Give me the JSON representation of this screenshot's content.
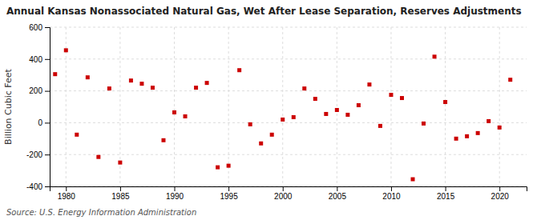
{
  "chart_data": {
    "type": "scatter",
    "title": "Annual Kansas Nonassociated Natural Gas, Wet After Lease Separation, Reserves Adjustments",
    "ylabel": "Billion Cubic Feet",
    "source": "Source: U.S. Energy Information Administration",
    "color": "#cc0000",
    "marker": "square",
    "grid": true,
    "x": [
      1979,
      1980,
      1981,
      1982,
      1983,
      1984,
      1985,
      1986,
      1987,
      1988,
      1989,
      1990,
      1991,
      1992,
      1993,
      1994,
      1995,
      1996,
      1997,
      1998,
      1999,
      2000,
      2001,
      2002,
      2003,
      2004,
      2005,
      2006,
      2007,
      2008,
      2009,
      2010,
      2011,
      2012,
      2013,
      2014,
      2015,
      2016,
      2017,
      2018,
      2019,
      2020,
      2021
    ],
    "values": [
      305,
      455,
      -75,
      285,
      -215,
      215,
      -250,
      265,
      245,
      220,
      -110,
      65,
      40,
      220,
      250,
      -280,
      -270,
      330,
      -10,
      -130,
      -75,
      20,
      35,
      215,
      150,
      55,
      80,
      50,
      110,
      240,
      -20,
      175,
      155,
      -355,
      -5,
      415,
      130,
      -100,
      -85,
      -65,
      10,
      -30,
      270
    ],
    "xlim": [
      1978.5,
      2022.5
    ],
    "xticks": [
      1980,
      1985,
      1990,
      1995,
      2000,
      2005,
      2010,
      2015,
      2020
    ],
    "ylim": [
      -400,
      600
    ],
    "yticks": [
      -400,
      -200,
      0,
      200,
      400,
      600
    ]
  }
}
